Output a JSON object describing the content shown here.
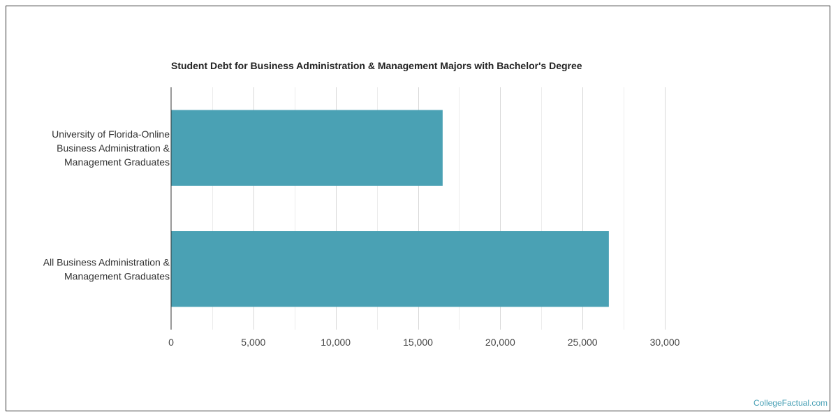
{
  "brand": "CollegeFactual.com",
  "colors": {
    "bar": "#4aa1b4"
  },
  "chart_data": {
    "type": "bar",
    "orientation": "horizontal",
    "title": "Student Debt for Business Administration & Management Majors with Bachelor's Degree",
    "categories": [
      [
        "University of Florida-Online",
        "Business Administration &",
        "Management Graduates"
      ],
      [
        "All Business Administration &",
        "Management Graduates"
      ]
    ],
    "values": [
      16500,
      26600
    ],
    "xlim": [
      0,
      30000
    ],
    "xticks": [
      0,
      5000,
      10000,
      15000,
      20000,
      25000,
      30000
    ],
    "xtick_labels": [
      "0",
      "5,000",
      "10,000",
      "15,000",
      "20,000",
      "25,000",
      "30,000"
    ],
    "xlabel": "",
    "ylabel": "",
    "grid": true,
    "legend": "none"
  }
}
